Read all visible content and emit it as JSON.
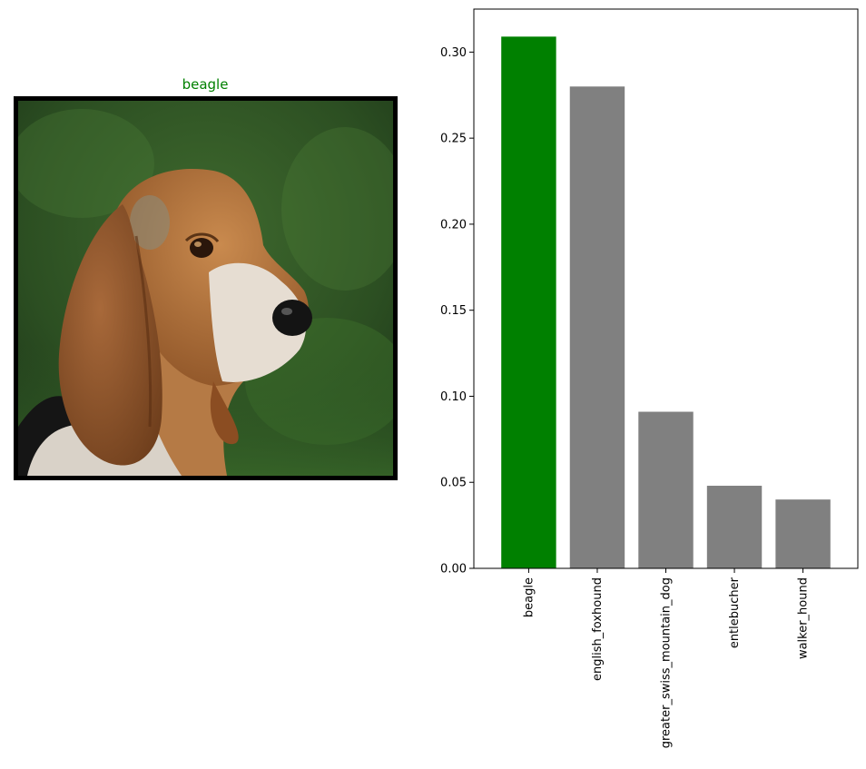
{
  "image_panel": {
    "title": "beagle",
    "title_color": "#008000",
    "subject": "beagle-dog-photo"
  },
  "colors": {
    "highlight_bar": "#008000",
    "other_bar": "#808080",
    "axis": "#000000"
  },
  "chart_data": {
    "type": "bar",
    "title": "",
    "xlabel": "",
    "ylabel": "",
    "categories": [
      "beagle",
      "english_foxhound",
      "greater_swiss_mountain_dog",
      "entlebucher",
      "walker_hound"
    ],
    "values": [
      0.309,
      0.28,
      0.091,
      0.048,
      0.04
    ],
    "highlight_index": 0,
    "ylim": [
      0,
      0.325
    ],
    "yticks": [
      0.0,
      0.05,
      0.1,
      0.15,
      0.2,
      0.25,
      0.3
    ],
    "ytick_labels": [
      "0.00",
      "0.05",
      "0.10",
      "0.15",
      "0.20",
      "0.25",
      "0.30"
    ],
    "grid": false,
    "xtick_rotation": "vertical"
  }
}
